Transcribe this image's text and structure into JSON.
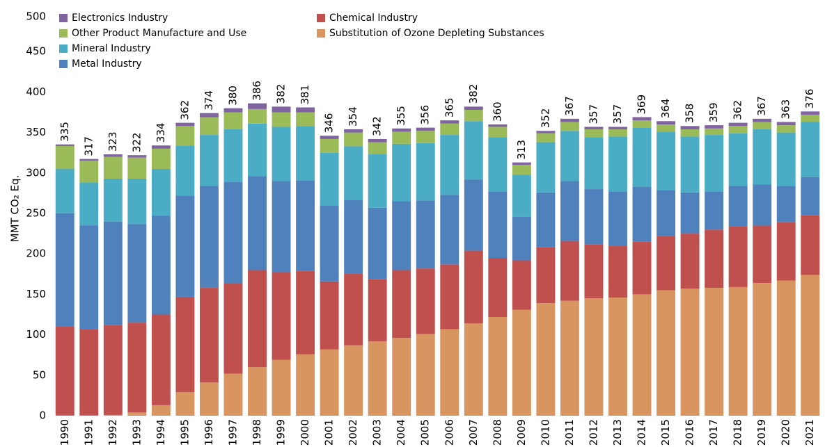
{
  "chart_data": {
    "type": "stacked_bar",
    "y_label": "MMT CO₂ Eq.",
    "categories": [
      "1990",
      "1991",
      "1992",
      "1993",
      "1994",
      "1995",
      "1996",
      "1997",
      "1998",
      "1999",
      "2000",
      "2001",
      "2002",
      "2003",
      "2004",
      "2005",
      "2006",
      "2007",
      "2008",
      "2009",
      "2010",
      "2011",
      "2012",
      "2013",
      "2014",
      "2015",
      "2016",
      "2017",
      "2018",
      "2019",
      "2020",
      "2021"
    ],
    "series": [
      {
        "name": "Substitution of Ozone Depleting Substances",
        "color": "#d9955f",
        "values": [
          0.3,
          0.3,
          1,
          4,
          13,
          29,
          41,
          52,
          60,
          69,
          76,
          82,
          87,
          92,
          96,
          101,
          107,
          114,
          122,
          131,
          139,
          142,
          145,
          146,
          150,
          155,
          157,
          158,
          159,
          164,
          167,
          174
        ]
      },
      {
        "name": "Chemical Industry",
        "color": "#c0504d",
        "values": [
          110,
          107,
          111,
          111,
          112,
          118,
          117,
          112,
          120,
          108,
          103,
          84,
          89,
          77,
          84,
          81,
          80,
          90,
          73,
          61,
          69,
          74,
          67,
          64,
          65,
          67,
          68,
          72,
          75,
          71,
          72,
          74
        ]
      },
      {
        "name": "Metal Industry",
        "color": "#4f81bd",
        "values": [
          140,
          128,
          128,
          122,
          122,
          125,
          126,
          125,
          116,
          113,
          112,
          94,
          91,
          88,
          85,
          84,
          86,
          88,
          82,
          54,
          68,
          74,
          68,
          67,
          68,
          57,
          51,
          47,
          50,
          51,
          45,
          47
        ]
      },
      {
        "name": "Mineral Industry",
        "color": "#4bacc6",
        "values": [
          55,
          53,
          53,
          56,
          58,
          62,
          63,
          65,
          65,
          67,
          67,
          65,
          66,
          66,
          71,
          71,
          74,
          72,
          67,
          52,
          62,
          62,
          64,
          68,
          73,
          72,
          69,
          70,
          65,
          68,
          66,
          68
        ]
      },
      {
        "name": "Other Product Manufacture and Use",
        "color": "#9bbb59",
        "values": [
          28,
          27,
          27,
          26,
          25,
          24,
          22,
          21,
          18,
          18,
          17,
          17,
          17,
          15,
          15,
          15,
          14,
          14,
          13,
          12,
          11,
          11,
          10,
          9,
          9,
          9,
          9,
          8,
          9,
          9,
          9,
          9
        ]
      },
      {
        "name": "Electronics Industry",
        "color": "#8064a2",
        "values": [
          2,
          2,
          3,
          3,
          4,
          4,
          5,
          5,
          7,
          7,
          6,
          4,
          4,
          4,
          4,
          4,
          4,
          4,
          3,
          3,
          3,
          4,
          3,
          3,
          4,
          4,
          4,
          4,
          4,
          4,
          4,
          4
        ]
      }
    ],
    "totals": [
      335,
      317,
      323,
      322,
      334,
      362,
      374,
      380,
      386,
      382,
      381,
      346,
      354,
      342,
      355,
      356,
      365,
      382,
      360,
      313,
      352,
      367,
      357,
      357,
      369,
      364,
      358,
      359,
      362,
      367,
      363,
      376
    ],
    "ylim": [
      0,
      500
    ],
    "yticks": [
      0,
      50,
      100,
      150,
      200,
      250,
      300,
      350,
      400,
      450,
      500
    ],
    "grid": false
  }
}
